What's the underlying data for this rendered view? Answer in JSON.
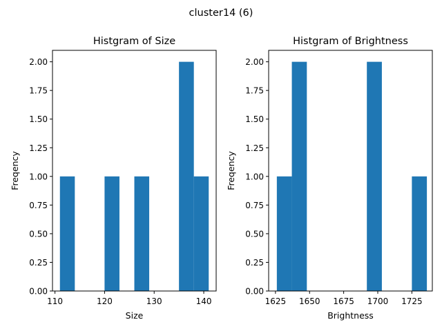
{
  "figure_title": "cluster14 (6)",
  "chart_data": [
    {
      "type": "bar",
      "title": "Histgram of Size",
      "xlabel": "Size",
      "ylabel": "Freqency",
      "xlim": [
        109.5,
        142.5
      ],
      "ylim": [
        0,
        2.1
      ],
      "xticks": [
        110,
        120,
        130,
        140
      ],
      "yticks": [
        "0.00",
        "0.25",
        "0.50",
        "0.75",
        "1.00",
        "1.25",
        "1.50",
        "1.75",
        "2.00"
      ],
      "bins": [
        {
          "x0": 111.0,
          "x1": 114.0,
          "value": 1
        },
        {
          "x0": 114.0,
          "x1": 117.0,
          "value": 0
        },
        {
          "x0": 117.0,
          "x1": 120.0,
          "value": 0
        },
        {
          "x0": 120.0,
          "x1": 123.0,
          "value": 1
        },
        {
          "x0": 123.0,
          "x1": 126.0,
          "value": 0
        },
        {
          "x0": 126.0,
          "x1": 129.0,
          "value": 1
        },
        {
          "x0": 129.0,
          "x1": 132.0,
          "value": 0
        },
        {
          "x0": 132.0,
          "x1": 135.0,
          "value": 0
        },
        {
          "x0": 135.0,
          "x1": 138.0,
          "value": 2
        },
        {
          "x0": 138.0,
          "x1": 141.0,
          "value": 1
        }
      ],
      "color": "#1f77b4",
      "grid": false
    },
    {
      "type": "bar",
      "title": "Histgram of Brightness",
      "xlabel": "Brightness",
      "ylabel": "Freqency",
      "xlim": [
        1620,
        1740
      ],
      "ylim": [
        0,
        2.1
      ],
      "xticks": [
        1625,
        1650,
        1675,
        1700,
        1725
      ],
      "yticks": [
        "0.00",
        "0.25",
        "0.50",
        "0.75",
        "1.00",
        "1.25",
        "1.50",
        "1.75",
        "2.00"
      ],
      "bins": [
        {
          "x0": 1626,
          "x1": 1637,
          "value": 1
        },
        {
          "x0": 1637,
          "x1": 1648,
          "value": 2
        },
        {
          "x0": 1648,
          "x1": 1659,
          "value": 0
        },
        {
          "x0": 1659,
          "x1": 1670,
          "value": 0
        },
        {
          "x0": 1670,
          "x1": 1681,
          "value": 0
        },
        {
          "x0": 1681,
          "x1": 1692,
          "value": 0
        },
        {
          "x0": 1692,
          "x1": 1703,
          "value": 2
        },
        {
          "x0": 1703,
          "x1": 1714,
          "value": 0
        },
        {
          "x0": 1714,
          "x1": 1725,
          "value": 0
        },
        {
          "x0": 1725,
          "x1": 1736,
          "value": 1
        }
      ],
      "color": "#1f77b4",
      "grid": false
    }
  ]
}
